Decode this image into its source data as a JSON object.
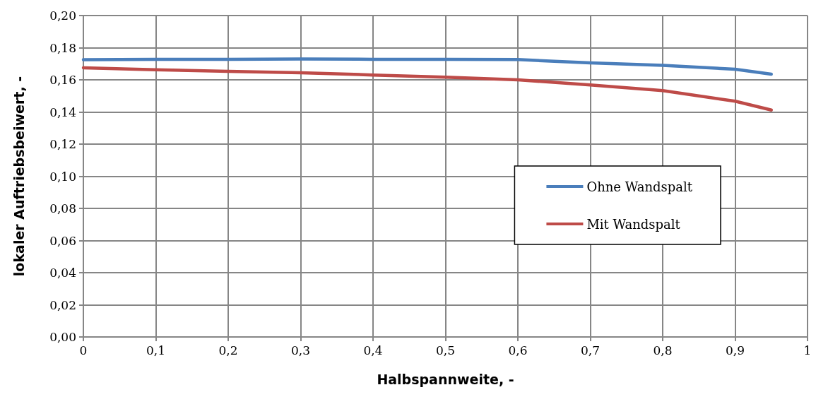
{
  "chart_data": {
    "type": "line",
    "xlabel": "Halbspannweite, -",
    "ylabel": "lokaler Auftriebsbeiwert, -",
    "x": [
      0,
      0.1,
      0.2,
      0.3,
      0.4,
      0.5,
      0.6,
      0.7,
      0.8,
      0.9,
      0.95
    ],
    "series": [
      {
        "name": "Ohne Wandspalt",
        "color": "#4a7ebb",
        "values": [
          0.1725,
          0.1727,
          0.1728,
          0.173,
          0.1728,
          0.1727,
          0.1726,
          0.1705,
          0.169,
          0.1666,
          0.1635
        ]
      },
      {
        "name": "Mit Wandspalt",
        "color": "#be4b48",
        "values": [
          0.1675,
          0.1663,
          0.1653,
          0.1644,
          0.163,
          0.1616,
          0.16,
          0.1568,
          0.1533,
          0.1467,
          0.1412
        ]
      }
    ],
    "xlim": [
      0,
      1
    ],
    "ylim": [
      0,
      0.2
    ],
    "xticks": [
      0,
      {
        "value": 0.1,
        "label": "0,1"
      },
      {
        "value": 0.2,
        "label": "0,2"
      },
      {
        "value": 0.3,
        "label": "0,3"
      },
      {
        "value": 0.4,
        "label": "0,4"
      },
      {
        "value": 0.5,
        "label": "0,5"
      },
      {
        "value": 0.6,
        "label": "0,6"
      },
      {
        "value": 0.7,
        "label": "0,7"
      },
      {
        "value": 0.8,
        "label": "0,8"
      },
      {
        "value": 0.9,
        "label": "0,9"
      },
      1
    ],
    "yticks": [
      {
        "value": 0,
        "label": "0,00"
      },
      {
        "value": 0.02,
        "label": "0,02"
      },
      {
        "value": 0.04,
        "label": "0,04"
      },
      {
        "value": 0.06,
        "label": "0,06"
      },
      {
        "value": 0.08,
        "label": "0,08"
      },
      {
        "value": 0.1,
        "label": "0,10"
      },
      {
        "value": 0.12,
        "label": "0,12"
      },
      {
        "value": 0.14,
        "label": "0,14"
      },
      {
        "value": 0.16,
        "label": "0,16"
      },
      {
        "value": 0.18,
        "label": "0,18"
      },
      {
        "value": 0.2,
        "label": "0,20"
      }
    ],
    "grid": true,
    "legend": "right",
    "marker": "none",
    "line_style": "solid"
  }
}
